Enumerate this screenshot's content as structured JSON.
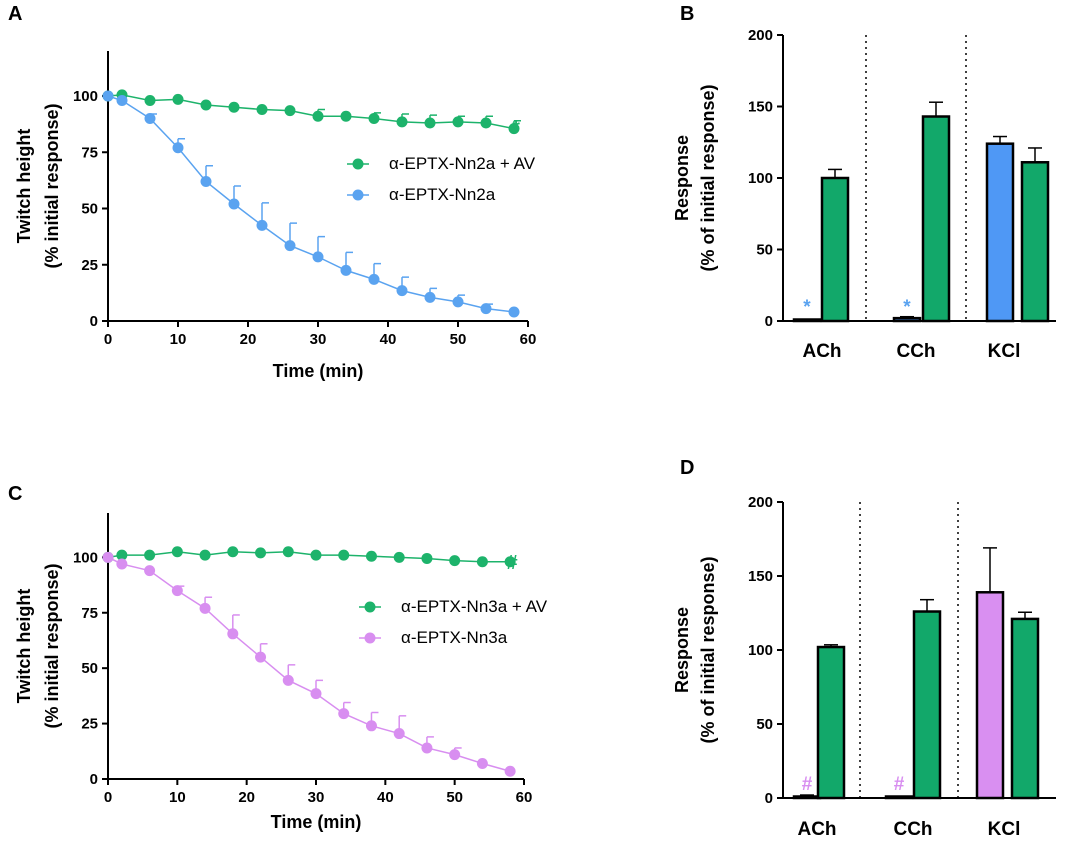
{
  "colors": {
    "green": "#1db36b",
    "green_bar": "#12a86a",
    "blue": "#5aa3f0",
    "blue_bar": "#4f98f5",
    "violet": "#d88ef0",
    "violet_bar": "#d98ff1",
    "axis": "#000000"
  },
  "chart_data": [
    {
      "id": "A",
      "panel_label": "A",
      "type": "line",
      "xlabel": "Time (min)",
      "ylabel": [
        "Twitch height",
        "(% initial response)"
      ],
      "xlim": [
        0,
        60
      ],
      "ylim": [
        0,
        120
      ],
      "xticks": [
        0,
        10,
        20,
        30,
        40,
        50,
        60
      ],
      "yticks": [
        0,
        25,
        50,
        75,
        100
      ],
      "legend_position": "upper-right",
      "annotation": {
        "text": "*",
        "x": 60,
        "y": 86,
        "color_key": "green"
      },
      "series": [
        {
          "name": "α-EPTX-Nn2a + AV",
          "color_key": "green",
          "x": [
            0,
            2,
            6,
            10,
            14,
            18,
            22,
            26,
            30,
            34,
            38,
            42,
            46,
            50,
            54,
            58
          ],
          "y": [
            100,
            100.5,
            98,
            98.5,
            96,
            95,
            94,
            93.5,
            91,
            91,
            90,
            88.5,
            88,
            88.5,
            88,
            85.5
          ],
          "err": [
            0,
            0,
            0,
            0,
            0,
            0,
            0,
            0,
            3,
            0,
            2.5,
            3.5,
            3.5,
            2.5,
            3,
            3.5
          ]
        },
        {
          "name": "α-EPTX-Nn2a",
          "color_key": "blue",
          "x": [
            0,
            2,
            6,
            10,
            14,
            18,
            22,
            26,
            30,
            34,
            38,
            42,
            46,
            50,
            54,
            58
          ],
          "y": [
            100,
            98,
            90,
            77,
            62,
            52,
            42.5,
            33.5,
            28.5,
            22.5,
            18.5,
            13.5,
            10.5,
            8.5,
            5.5,
            4
          ],
          "err": [
            0,
            0,
            2,
            4,
            7,
            8,
            10,
            10,
            9,
            8,
            7,
            6,
            4,
            3,
            2,
            0
          ]
        }
      ]
    },
    {
      "id": "B",
      "panel_label": "B",
      "type": "bar",
      "ylabel": [
        "Response",
        "(% of initial response)"
      ],
      "ylim": [
        0,
        200
      ],
      "yticks": [
        0,
        50,
        100,
        150,
        200
      ],
      "categories": [
        "ACh",
        "CCh",
        "KCl"
      ],
      "bars": [
        {
          "category": "ACh",
          "value": 1,
          "err": 0,
          "color_key": "blue_bar",
          "marker": "*"
        },
        {
          "category": "ACh",
          "value": 100,
          "err": 6,
          "color_key": "green_bar"
        },
        {
          "category": "CCh",
          "value": 2,
          "err": 1,
          "color_key": "blue_bar",
          "marker": "*"
        },
        {
          "category": "CCh",
          "value": 143,
          "err": 10,
          "color_key": "green_bar"
        },
        {
          "category": "KCl",
          "value": 124,
          "err": 5,
          "color_key": "blue_bar"
        },
        {
          "category": "KCl",
          "value": 111,
          "err": 10,
          "color_key": "green_bar"
        }
      ],
      "marker_color_key": "blue"
    },
    {
      "id": "C",
      "panel_label": "C",
      "type": "line",
      "xlabel": "Time (min)",
      "ylabel": [
        "Twitch height",
        "(% initial response)"
      ],
      "xlim": [
        0,
        60
      ],
      "ylim": [
        0,
        120
      ],
      "xticks": [
        0,
        10,
        20,
        30,
        40,
        50,
        60
      ],
      "yticks": [
        0,
        25,
        50,
        75,
        100
      ],
      "legend_position": "center-right",
      "annotation": {
        "text": "#",
        "x": 60,
        "y": 98,
        "color_key": "green"
      },
      "series": [
        {
          "name": "α-EPTX-Nn3a + AV",
          "color_key": "green",
          "x": [
            0,
            2,
            6,
            10,
            14,
            18,
            22,
            26,
            30,
            34,
            38,
            42,
            46,
            50,
            54,
            58
          ],
          "y": [
            100,
            101,
            101,
            102.5,
            101,
            102.5,
            102,
            102.5,
            101,
            101,
            100.5,
            100,
            99.5,
            98.5,
            98,
            98
          ],
          "err": [
            0,
            0,
            0,
            0,
            0,
            0,
            0,
            0,
            0,
            0,
            0,
            0,
            0,
            0,
            0,
            0
          ]
        },
        {
          "name": "α-EPTX-Nn3a",
          "color_key": "violet",
          "x": [
            0,
            2,
            6,
            10,
            14,
            18,
            22,
            26,
            30,
            34,
            38,
            42,
            46,
            50,
            54,
            58
          ],
          "y": [
            100,
            97,
            94,
            85,
            77,
            65.5,
            55,
            44.5,
            38.5,
            29.5,
            24,
            20.5,
            14,
            11,
            7,
            3.5
          ],
          "err": [
            0,
            0,
            0,
            2,
            5,
            8.5,
            6,
            7,
            6,
            5,
            6,
            8,
            5,
            3,
            0,
            0
          ]
        }
      ]
    },
    {
      "id": "D",
      "panel_label": "D",
      "type": "bar",
      "ylabel": [
        "Response",
        "(% of initial response)"
      ],
      "ylim": [
        0,
        200
      ],
      "yticks": [
        0,
        50,
        100,
        150,
        200
      ],
      "categories": [
        "ACh",
        "CCh",
        "KCl"
      ],
      "bars": [
        {
          "category": "ACh",
          "value": 1,
          "err": 1,
          "color_key": "violet_bar",
          "marker": "#"
        },
        {
          "category": "ACh",
          "value": 102,
          "err": 1.5,
          "color_key": "green_bar"
        },
        {
          "category": "CCh",
          "value": 0.5,
          "err": 0,
          "color_key": "violet_bar",
          "marker": "#"
        },
        {
          "category": "CCh",
          "value": 126,
          "err": 8,
          "color_key": "green_bar"
        },
        {
          "category": "KCl",
          "value": 139,
          "err": 30,
          "color_key": "violet_bar"
        },
        {
          "category": "KCl",
          "value": 121,
          "err": 4.5,
          "color_key": "green_bar"
        }
      ],
      "marker_color_key": "violet"
    }
  ]
}
